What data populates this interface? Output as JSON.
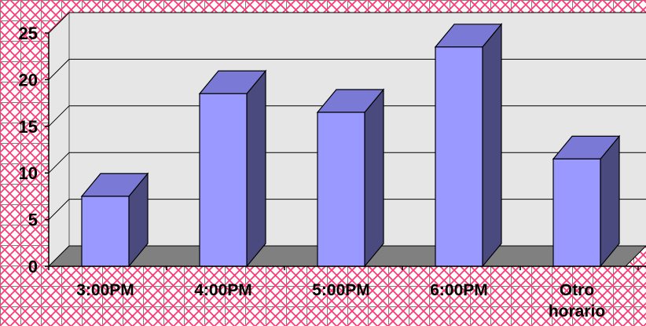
{
  "chart_data": {
    "type": "bar",
    "style": "3d-column",
    "categories": [
      "3:00PM",
      "4:00PM",
      "5:00PM",
      "6:00PM",
      "Otro horario"
    ],
    "values": [
      7.5,
      18.5,
      16.5,
      23.5,
      11.5
    ],
    "yticks": [
      0,
      5,
      10,
      15,
      20,
      25
    ],
    "ylim": [
      0,
      25
    ],
    "grid": true,
    "legend": "none",
    "colors": {
      "bar_front": "#9999ff",
      "bar_top": "#7a7ad6",
      "bar_side": "#4a4a7e",
      "floor": "#808080",
      "plot_back": "#e6e6e6",
      "gridline": "#000000",
      "ytick_label": "#000000",
      "xtick_label": "#000000"
    }
  }
}
